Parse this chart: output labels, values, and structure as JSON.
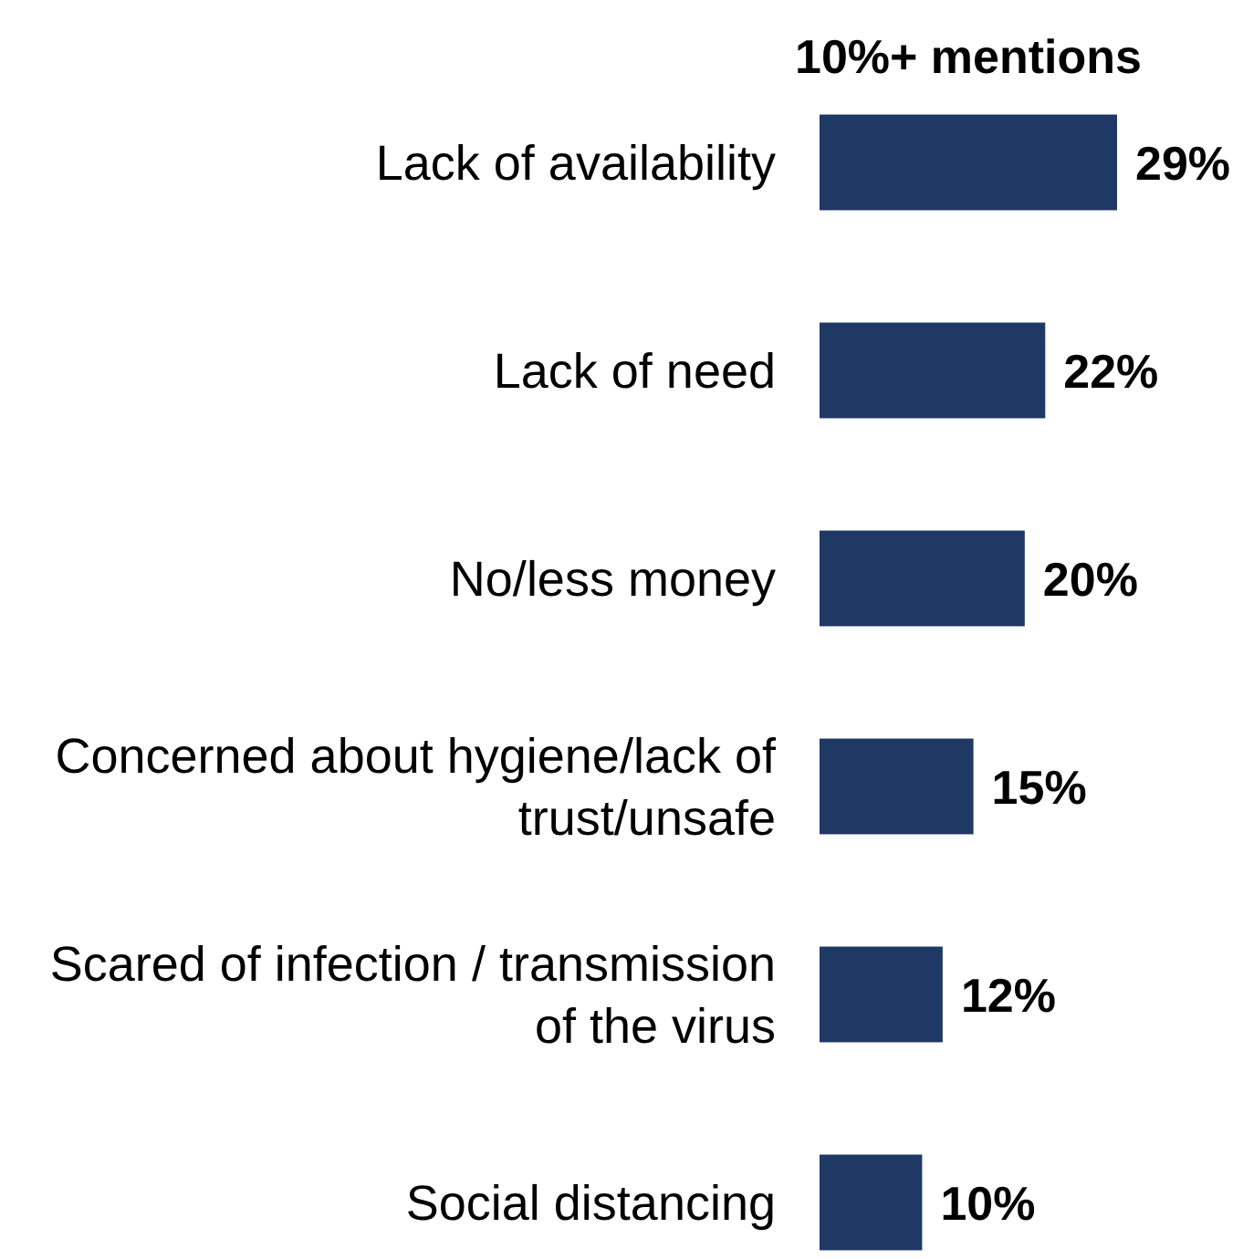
{
  "chart_data": {
    "type": "bar",
    "orientation": "horizontal",
    "title": "10%+ mentions",
    "categories": [
      "Lack of availability",
      "Lack of need",
      "No/less money",
      "Concerned about hygiene/lack of trust/unsafe",
      "Scared of infection / transmission of the virus",
      "Social distancing"
    ],
    "values": [
      29,
      22,
      20,
      15,
      12,
      10
    ],
    "value_labels": [
      "29%",
      "22%",
      "20%",
      "15%",
      "12%",
      "10%"
    ],
    "color": "#203864"
  }
}
